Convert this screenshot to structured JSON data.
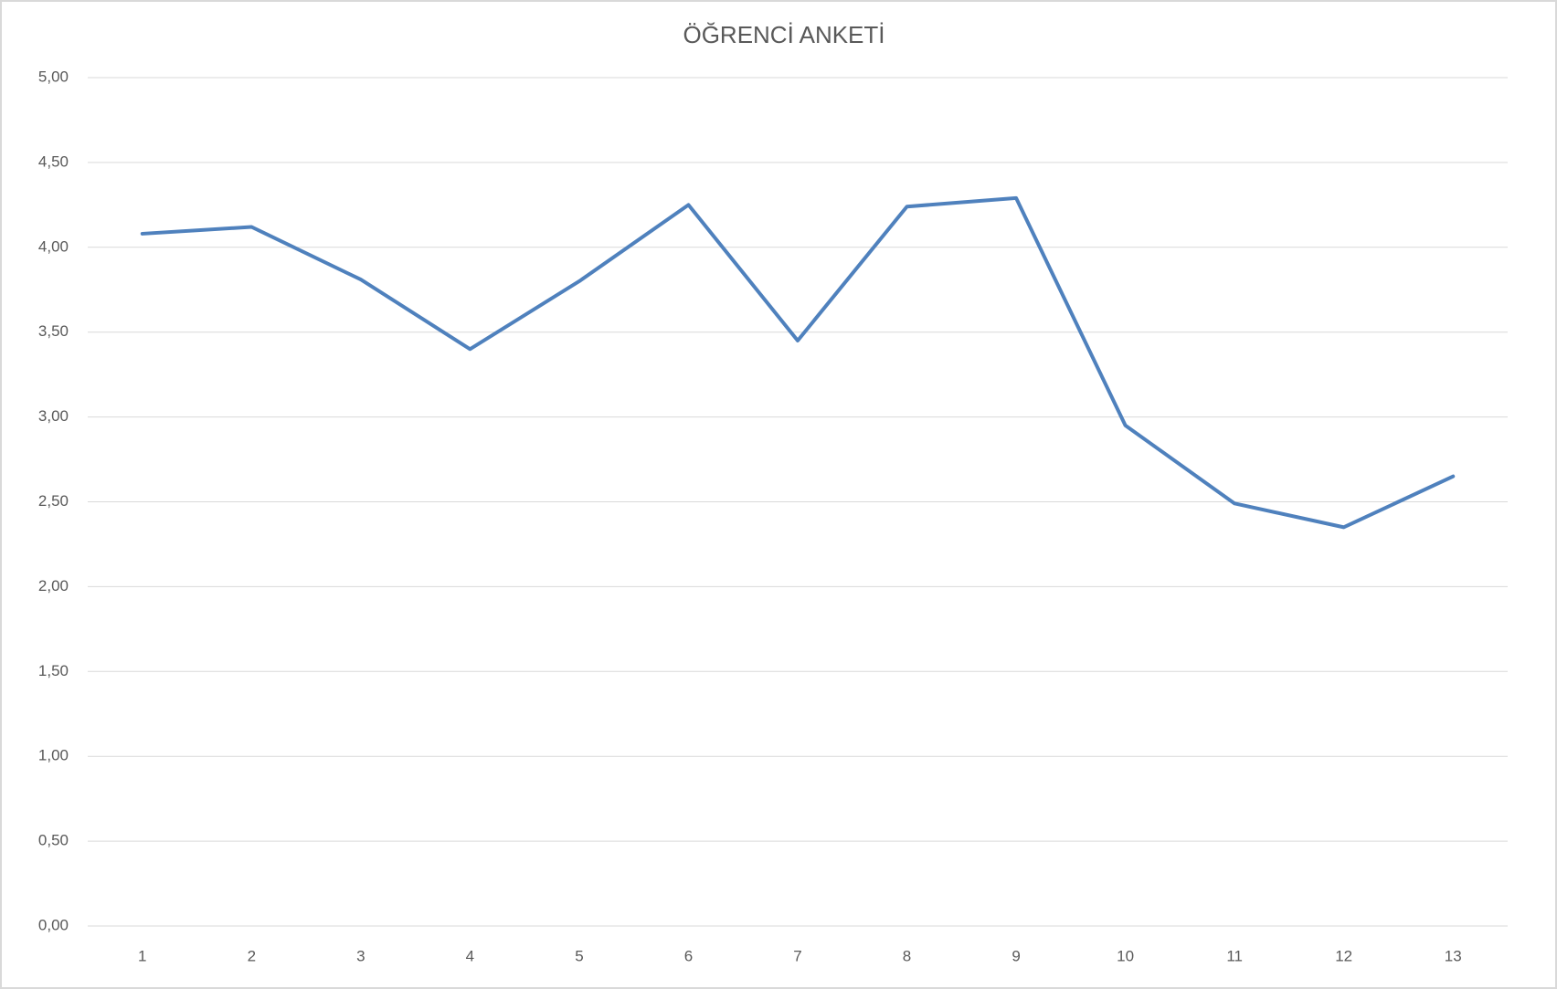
{
  "chart_data": {
    "type": "line",
    "title": "ÖĞRENCİ ANKETİ",
    "categories": [
      "1",
      "2",
      "3",
      "4",
      "5",
      "6",
      "7",
      "8",
      "9",
      "10",
      "11",
      "12",
      "13"
    ],
    "series": [
      {
        "color": "#4f81bd",
        "values": [
          4.08,
          4.12,
          3.81,
          3.4,
          3.8,
          4.25,
          3.45,
          4.24,
          4.29,
          2.95,
          2.49,
          2.35,
          2.65
        ]
      }
    ],
    "ylim": [
      0,
      5
    ],
    "yticks": [
      {
        "value": 0,
        "label": "0,00"
      },
      {
        "value": 0.5,
        "label": "0,50"
      },
      {
        "value": 1,
        "label": "1,00"
      },
      {
        "value": 1.5,
        "label": "1,50"
      },
      {
        "value": 2,
        "label": "2,00"
      },
      {
        "value": 2.5,
        "label": "2,50"
      },
      {
        "value": 3,
        "label": "3,00"
      },
      {
        "value": 3.5,
        "label": "3,50"
      },
      {
        "value": 4,
        "label": "4,00"
      },
      {
        "value": 4.5,
        "label": "4,50"
      },
      {
        "value": 5,
        "label": "5,00"
      }
    ],
    "grid": true
  }
}
